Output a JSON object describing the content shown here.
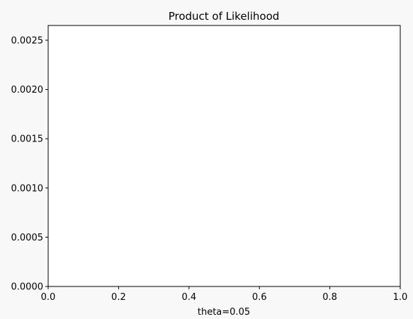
{
  "chart_data": {
    "type": "line",
    "title": "Product of Likelihood",
    "xlabel": "theta=0.05",
    "ylabel": "",
    "xlim": [
      0.0,
      1.0
    ],
    "ylim": [
      0.0,
      0.00265
    ],
    "x_ticks": [
      "0.0",
      "0.2",
      "0.4",
      "0.6",
      "0.8",
      "1.0"
    ],
    "x_tick_values": [
      0.0,
      0.2,
      0.4,
      0.6,
      0.8,
      1.0
    ],
    "y_ticks": [
      "0.0000",
      "0.0005",
      "0.0010",
      "0.0015",
      "0.0020",
      "0.0025"
    ],
    "y_tick_values": [
      0.0,
      0.0005,
      0.001,
      0.0015,
      0.002,
      0.0025
    ],
    "series": [],
    "grid": false,
    "colors": {
      "background": "#f8f8f8",
      "plot_background": "#ffffff",
      "axis": "#000000"
    }
  }
}
